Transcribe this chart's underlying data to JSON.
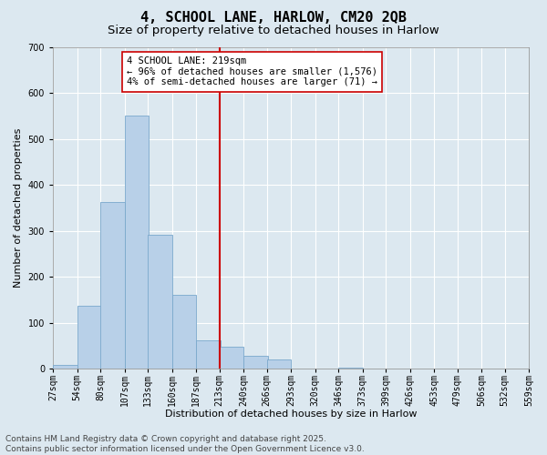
{
  "title": "4, SCHOOL LANE, HARLOW, CM20 2QB",
  "subtitle": "Size of property relative to detached houses in Harlow",
  "xlabel": "Distribution of detached houses by size in Harlow",
  "ylabel": "Number of detached properties",
  "bar_color": "#b8d0e8",
  "bar_edge_color": "#7aa8cc",
  "background_color": "#dce8f0",
  "grid_color": "#ffffff",
  "vline_x": 213,
  "vline_color": "#cc0000",
  "property_label": "4 SCHOOL LANE: 219sqm",
  "annotation_line1": "← 96% of detached houses are smaller (1,576)",
  "annotation_line2": "4% of semi-detached houses are larger (71) →",
  "annotation_box_color": "#ffffff",
  "annotation_box_edge": "#cc0000",
  "bin_edges": [
    27,
    54,
    80,
    107,
    133,
    160,
    187,
    213,
    240,
    266,
    293,
    320,
    346,
    373,
    399,
    426,
    453,
    479,
    506,
    532,
    559
  ],
  "bin_labels": [
    "27sqm",
    "54sqm",
    "80sqm",
    "107sqm",
    "133sqm",
    "160sqm",
    "187sqm",
    "213sqm",
    "240sqm",
    "266sqm",
    "293sqm",
    "320sqm",
    "346sqm",
    "373sqm",
    "399sqm",
    "426sqm",
    "453sqm",
    "479sqm",
    "506sqm",
    "532sqm",
    "559sqm"
  ],
  "bar_heights": [
    8,
    137,
    362,
    551,
    291,
    160,
    62,
    48,
    28,
    20,
    0,
    0,
    3,
    0,
    0,
    0,
    0,
    0,
    0,
    0
  ],
  "ylim": [
    0,
    700
  ],
  "yticks": [
    0,
    100,
    200,
    300,
    400,
    500,
    600,
    700
  ],
  "footer_line1": "Contains HM Land Registry data © Crown copyright and database right 2025.",
  "footer_line2": "Contains public sector information licensed under the Open Government Licence v3.0.",
  "title_fontsize": 11,
  "subtitle_fontsize": 9.5,
  "tick_fontsize": 7,
  "label_fontsize": 8,
  "footer_fontsize": 6.5,
  "annotation_fontsize": 7.5
}
